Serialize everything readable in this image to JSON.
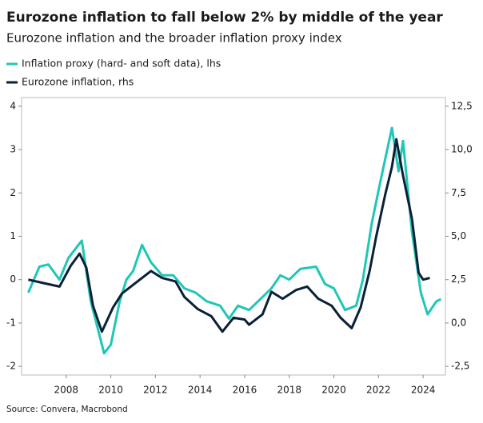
{
  "chart_data": {
    "type": "line",
    "title": "Eurozone inflation to fall below 2% by middle of the year",
    "subtitle": "Eurozone inflation and the broader inflation proxy index",
    "source": "Source: Convera, Macrobond",
    "xlim": [
      2006,
      2025
    ],
    "xticks": [
      2008,
      2010,
      2012,
      2014,
      2016,
      2018,
      2020,
      2022,
      2024
    ],
    "ylim": [
      -2.2,
      4.2
    ],
    "yticks": [
      -2,
      -1,
      0,
      1,
      2,
      3,
      4
    ],
    "y2lim": [
      -3,
      13
    ],
    "y2ticks": [
      {
        "value": -2.5,
        "label": "-2,5"
      },
      {
        "value": 0,
        "label": "0,0"
      },
      {
        "value": 2.5,
        "label": "2,5"
      },
      {
        "value": 5,
        "label": "5,0"
      },
      {
        "value": 7.5,
        "label": "7,5"
      },
      {
        "value": 10,
        "label": "10,0"
      },
      {
        "value": 12.5,
        "label": "12,5"
      }
    ],
    "grid": false,
    "series": [
      {
        "name": "Inflation proxy (hard- and soft data), lhs",
        "color": "#1fc7b6",
        "x": [
          2006.3,
          2006.8,
          2007.2,
          2007.7,
          2008.1,
          2008.7,
          2009.1,
          2009.7,
          2010.0,
          2010.4,
          2010.7,
          2011.0,
          2011.4,
          2011.8,
          2012.3,
          2012.8,
          2013.3,
          2013.8,
          2014.3,
          2014.9,
          2015.3,
          2015.7,
          2016.2,
          2016.8,
          2017.2,
          2017.6,
          2018.0,
          2018.5,
          2019.2,
          2019.6,
          2020.0,
          2020.5,
          2021.0,
          2021.3,
          2021.7,
          2022.1,
          2022.6,
          2022.9,
          2023.1,
          2023.5,
          2023.9,
          2024.2,
          2024.6,
          2024.8
        ],
        "values": [
          -0.3,
          0.3,
          0.35,
          0.0,
          0.5,
          0.9,
          -0.5,
          -1.7,
          -1.5,
          -0.5,
          0.0,
          0.2,
          0.8,
          0.4,
          0.1,
          0.1,
          -0.2,
          -0.3,
          -0.5,
          -0.6,
          -0.9,
          -0.6,
          -0.7,
          -0.4,
          -0.2,
          0.1,
          0.0,
          0.25,
          0.3,
          -0.1,
          -0.2,
          -0.7,
          -0.6,
          0.0,
          1.3,
          2.3,
          3.5,
          2.5,
          3.2,
          1.1,
          -0.3,
          -0.8,
          -0.5,
          -0.45
        ]
      },
      {
        "name": "Eurozone inflation, rhs",
        "color": "#0b2038",
        "axis": "y2",
        "x": [
          2006.3,
          2007.0,
          2007.7,
          2008.2,
          2008.6,
          2008.9,
          2009.2,
          2009.6,
          2010.1,
          2010.5,
          2011.0,
          2011.8,
          2012.3,
          2012.9,
          2013.3,
          2013.9,
          2014.5,
          2015.0,
          2015.5,
          2016.0,
          2016.2,
          2016.8,
          2017.2,
          2017.7,
          2018.3,
          2018.8,
          2019.3,
          2019.9,
          2020.3,
          2020.8,
          2021.2,
          2021.6,
          2021.9,
          2022.3,
          2022.6,
          2022.8,
          2023.1,
          2023.5,
          2023.8,
          2024.0,
          2024.3
        ],
        "values": [
          2.5,
          2.3,
          2.1,
          3.3,
          4.0,
          3.2,
          1.0,
          -0.5,
          0.9,
          1.7,
          2.2,
          3.0,
          2.6,
          2.4,
          1.5,
          0.8,
          0.4,
          -0.5,
          0.3,
          0.2,
          -0.1,
          0.5,
          1.8,
          1.4,
          1.9,
          2.1,
          1.4,
          1.0,
          0.3,
          -0.3,
          0.9,
          3.0,
          5.0,
          7.4,
          9.0,
          10.6,
          8.5,
          6.0,
          2.9,
          2.5,
          2.6
        ]
      }
    ]
  }
}
